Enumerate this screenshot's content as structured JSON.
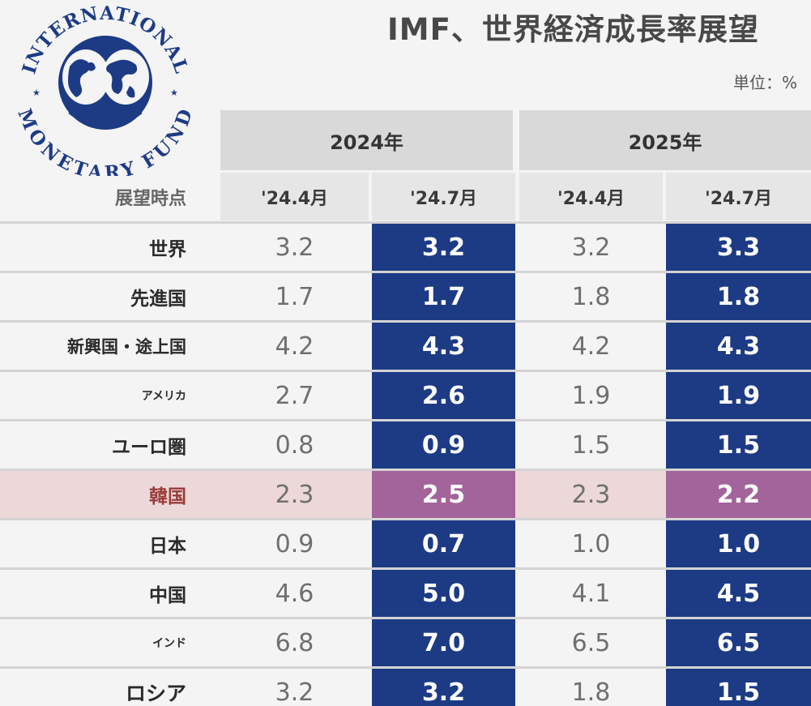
{
  "title": "IMF、世界経済成長率展望",
  "unit_label": "単位：%",
  "logo": {
    "top_text": "INTERNATIONAL",
    "bottom_text": "MONETARY FUND"
  },
  "colors": {
    "highlight_blue": "#1d3b85",
    "highlight_pink": "#a2649a",
    "highlight_row": "#ecd8d8"
  },
  "chart_data": {
    "type": "table",
    "title": "IMF、世界経済成長率展望",
    "unit": "単位：%",
    "row_header": "展望時点",
    "year_groups": [
      {
        "year": "2024年",
        "columns": [
          "'24.4月",
          "'24.7月"
        ]
      },
      {
        "year": "2025年",
        "columns": [
          "'24.4月",
          "'24.7月"
        ]
      }
    ],
    "rows": [
      {
        "label": "世界",
        "values": [
          "3.2",
          "3.2",
          "3.2",
          "3.3"
        ]
      },
      {
        "label": "先進国",
        "values": [
          "1.7",
          "1.7",
          "1.8",
          "1.8"
        ]
      },
      {
        "label": "新興国・途上国",
        "values": [
          "4.2",
          "4.3",
          "4.2",
          "4.3"
        ]
      },
      {
        "label": "アメリカ",
        "values": [
          "2.7",
          "2.6",
          "1.9",
          "1.9"
        ]
      },
      {
        "label": "ユーロ圏",
        "values": [
          "0.8",
          "0.9",
          "1.5",
          "1.5"
        ]
      },
      {
        "label": "韓国",
        "values": [
          "2.3",
          "2.5",
          "2.3",
          "2.2"
        ],
        "highlighted": true
      },
      {
        "label": "日本",
        "values": [
          "0.9",
          "0.7",
          "1.0",
          "1.0"
        ]
      },
      {
        "label": "中国",
        "values": [
          "4.6",
          "5.0",
          "4.1",
          "4.5"
        ]
      },
      {
        "label": "インド",
        "values": [
          "6.8",
          "7.0",
          "6.5",
          "6.5"
        ]
      },
      {
        "label": "ロシア",
        "values": [
          "3.2",
          "3.2",
          "1.8",
          "1.5"
        ]
      }
    ]
  }
}
